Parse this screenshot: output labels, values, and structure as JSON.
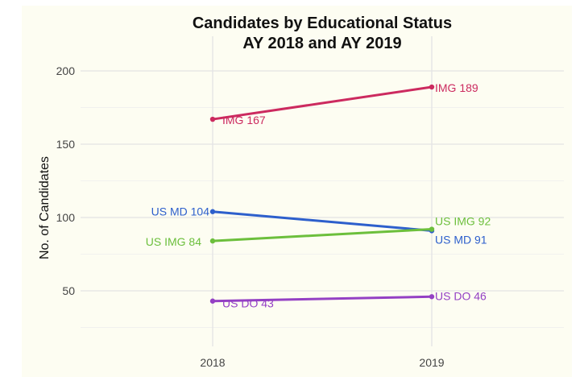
{
  "chart_data": {
    "type": "line",
    "title": "Candidates by Educational Status",
    "subtitle": "AY 2018 and AY 2019",
    "xlabel": "",
    "ylabel": "No. of Candidates",
    "x": [
      "2018",
      "2019"
    ],
    "yticks": [
      "50",
      "100",
      "150",
      "200"
    ],
    "ylim": [
      40,
      203
    ],
    "grid": true,
    "series": [
      {
        "name": "IMG",
        "values": [
          167,
          189
        ],
        "color": "#cc2a5f",
        "labels": [
          "IMG 167",
          "IMG 189"
        ]
      },
      {
        "name": "US MD",
        "values": [
          104,
          91
        ],
        "color": "#2d5fcc",
        "labels": [
          "US MD 104",
          "US MD 91"
        ]
      },
      {
        "name": "US IMG",
        "values": [
          84,
          92
        ],
        "color": "#6cbf3c",
        "labels": [
          "US IMG 84",
          "US IMG 92"
        ]
      },
      {
        "name": "US DO",
        "values": [
          43,
          46
        ],
        "color": "#9440c4",
        "labels": [
          "US DO 43",
          "US DO 46"
        ]
      }
    ]
  }
}
